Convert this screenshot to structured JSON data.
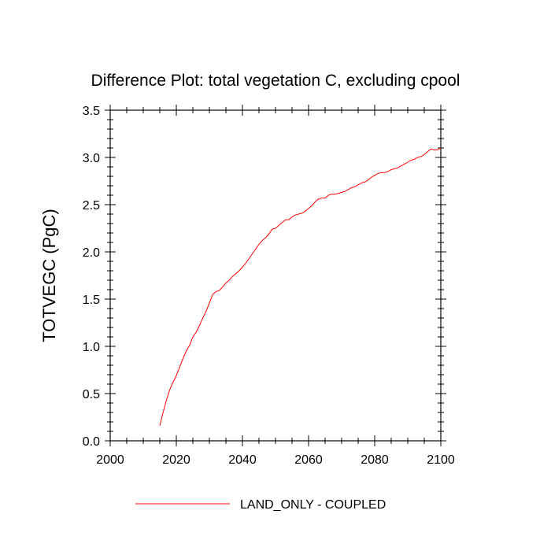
{
  "chart_data": {
    "type": "line",
    "title": "Difference Plot: total vegetation C, excluding cpool",
    "xlabel": "",
    "ylabel": "TOTVEGC  (PgC)",
    "xlim": [
      2000,
      2100
    ],
    "ylim": [
      0.0,
      3.5
    ],
    "x_ticks": [
      2000,
      2020,
      2040,
      2060,
      2080,
      2100
    ],
    "x_tick_labels": [
      "2000",
      "2020",
      "2040",
      "2060",
      "2080",
      "2100"
    ],
    "y_ticks": [
      0.0,
      0.5,
      1.0,
      1.5,
      2.0,
      2.5,
      3.0,
      3.5
    ],
    "y_tick_labels": [
      "0.0",
      "0.5",
      "1.0",
      "1.5",
      "2.0",
      "2.5",
      "3.0",
      "3.5"
    ],
    "grid": false,
    "legend_position": "bottom-center",
    "series": [
      {
        "name": "LAND_ONLY - COUPLED",
        "color": "#ff0000",
        "x": [
          2015,
          2016,
          2017,
          2018,
          2019,
          2020,
          2021,
          2022,
          2023,
          2024,
          2025,
          2026,
          2027,
          2028,
          2029,
          2030,
          2031,
          2032,
          2033,
          2034,
          2035,
          2036,
          2037,
          2038,
          2039,
          2040,
          2041,
          2042,
          2043,
          2044,
          2045,
          2046,
          2047,
          2048,
          2049,
          2050,
          2051,
          2052,
          2053,
          2054,
          2055,
          2056,
          2057,
          2058,
          2059,
          2060,
          2061,
          2062,
          2063,
          2064,
          2065,
          2066,
          2067,
          2068,
          2069,
          2070,
          2071,
          2072,
          2073,
          2074,
          2075,
          2076,
          2077,
          2078,
          2079,
          2080,
          2081,
          2082,
          2083,
          2084,
          2085,
          2086,
          2087,
          2088,
          2089,
          2090,
          2091,
          2092,
          2093,
          2094,
          2095,
          2096,
          2097,
          2098,
          2099,
          2100
        ],
        "values": [
          0.16,
          0.3,
          0.43,
          0.54,
          0.62,
          0.69,
          0.78,
          0.87,
          0.95,
          1.01,
          1.1,
          1.15,
          1.22,
          1.3,
          1.37,
          1.46,
          1.55,
          1.58,
          1.59,
          1.63,
          1.67,
          1.7,
          1.74,
          1.77,
          1.8,
          1.84,
          1.88,
          1.93,
          1.98,
          2.03,
          2.08,
          2.12,
          2.15,
          2.19,
          2.24,
          2.25,
          2.28,
          2.31,
          2.34,
          2.34,
          2.37,
          2.39,
          2.4,
          2.41,
          2.43,
          2.46,
          2.49,
          2.53,
          2.56,
          2.57,
          2.57,
          2.6,
          2.61,
          2.61,
          2.62,
          2.63,
          2.64,
          2.66,
          2.68,
          2.69,
          2.71,
          2.73,
          2.74,
          2.76,
          2.79,
          2.81,
          2.83,
          2.84,
          2.84,
          2.85,
          2.87,
          2.88,
          2.89,
          2.91,
          2.93,
          2.95,
          2.97,
          2.98,
          3.0,
          3.01,
          3.03,
          3.06,
          3.09,
          3.08,
          3.08,
          3.1
        ]
      }
    ]
  }
}
